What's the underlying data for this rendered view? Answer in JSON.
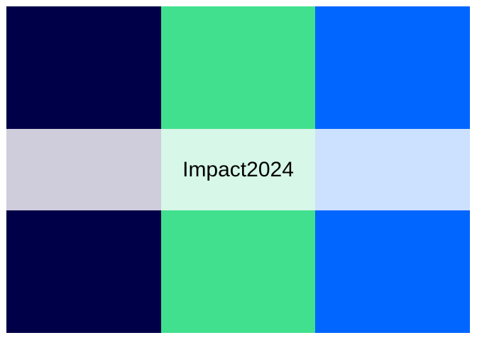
{
  "palette": {
    "name": "Impact2024",
    "colors": {
      "primary": [
        "#000048",
        "#41E08F",
        "#0066FF"
      ],
      "tint": [
        "#CFCCDB",
        "#D7F7E8",
        "#CCE0FF"
      ]
    }
  }
}
